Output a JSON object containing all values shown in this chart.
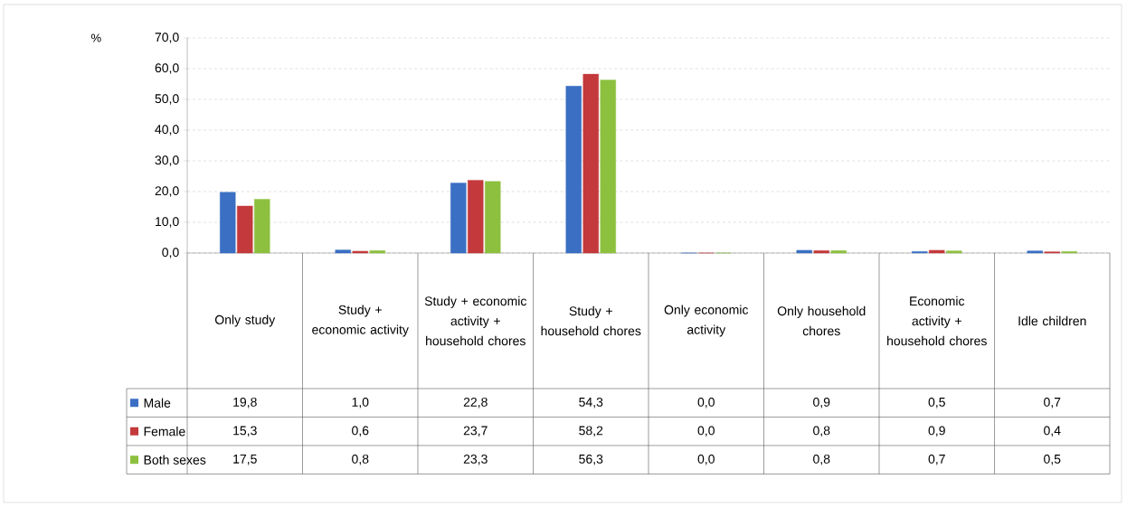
{
  "chart_data": {
    "type": "bar",
    "ylabel": "%",
    "categories": [
      "Only study",
      "Study + economic activity",
      "Study + economic activity + household chores",
      "Study + household chores",
      "Only economic activity",
      "Only household chores",
      "Economic activity + household chores",
      "Idle children"
    ],
    "series": [
      {
        "name": "Male",
        "color": "#3a6fc4",
        "values": [
          19.8,
          1.0,
          22.8,
          54.3,
          0.0,
          0.9,
          0.5,
          0.7
        ],
        "value_labels": [
          "19,8",
          "1,0",
          "22,8",
          "54,3",
          "0,0",
          "0,9",
          "0,5",
          "0,7"
        ]
      },
      {
        "name": "Female",
        "color": "#c4393b",
        "values": [
          15.3,
          0.6,
          23.7,
          58.2,
          0.0,
          0.8,
          0.9,
          0.4
        ],
        "value_labels": [
          "15,3",
          "0,6",
          "23,7",
          "58,2",
          "0,0",
          "0,8",
          "0,9",
          "0,4"
        ]
      },
      {
        "name": "Both sexes",
        "color": "#8dc03f",
        "values": [
          17.5,
          0.8,
          23.3,
          56.3,
          0.0,
          0.8,
          0.7,
          0.5
        ],
        "value_labels": [
          "17,5",
          "0,8",
          "23,3",
          "56,3",
          "0,0",
          "0,8",
          "0,7",
          "0,5"
        ]
      }
    ],
    "ylim": [
      0,
      70
    ],
    "yticks": [
      {
        "value": 0,
        "label": "0,0"
      },
      {
        "value": 10,
        "label": "10,0"
      },
      {
        "value": 20,
        "label": "20,0"
      },
      {
        "value": 30,
        "label": "30,0"
      },
      {
        "value": 40,
        "label": "40,0"
      },
      {
        "value": 50,
        "label": "50,0"
      },
      {
        "value": 60,
        "label": "60,0"
      },
      {
        "value": 70,
        "label": "70,0"
      }
    ],
    "grid": "y",
    "legend": "bottom"
  }
}
